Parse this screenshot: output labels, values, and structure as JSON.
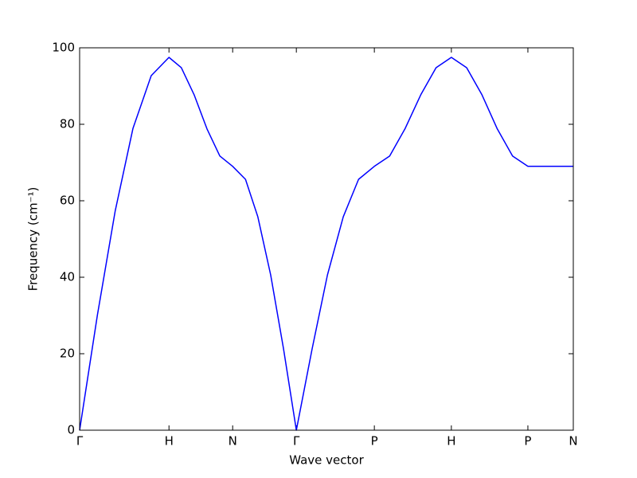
{
  "chart_data": {
    "type": "line",
    "xlabel": "Wave vector",
    "ylabel": "Frequency (cm⁻¹)",
    "x": [
      0,
      0.036,
      0.072,
      0.108,
      0.145,
      0.181,
      0.206,
      0.232,
      0.258,
      0.284,
      0.31,
      0.336,
      0.361,
      0.387,
      0.413,
      0.439,
      0.471,
      0.502,
      0.534,
      0.565,
      0.597,
      0.628,
      0.659,
      0.691,
      0.722,
      0.753,
      0.784,
      0.815,
      0.846,
      0.877,
      0.908,
      1.0
    ],
    "series": [
      {
        "color": "#0000ff",
        "values": [
          0,
          30.1,
          57.3,
          78.9,
          92.7,
          97.5,
          94.8,
          87.7,
          78.8,
          71.7,
          69,
          65.6,
          55.8,
          40.6,
          21.3,
          0,
          21.3,
          40.6,
          55.8,
          65.6,
          69,
          71.7,
          78.8,
          87.7,
          94.8,
          97.5,
          94.8,
          87.7,
          78.8,
          71.7,
          69,
          69
        ]
      }
    ],
    "xlim": [
      0,
      1
    ],
    "xticks": [
      {
        "value": 0,
        "label": "Γ"
      },
      {
        "value": 0.181,
        "label": "H"
      },
      {
        "value": 0.31,
        "label": "N"
      },
      {
        "value": 0.439,
        "label": "Γ"
      },
      {
        "value": 0.597,
        "label": "P"
      },
      {
        "value": 0.753,
        "label": "H"
      },
      {
        "value": 0.908,
        "label": "P"
      },
      {
        "value": 1.0,
        "label": "N"
      }
    ],
    "ylim": [
      0,
      100
    ],
    "yticks": [
      0,
      20,
      40,
      60,
      80,
      100
    ]
  }
}
